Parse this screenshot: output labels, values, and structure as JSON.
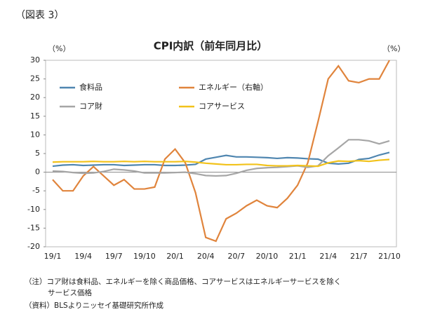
{
  "figure_label": "（図表 3）",
  "chart_data": {
    "type": "line",
    "title": "CPI内訳（前年同月比）",
    "y_unit_left": "（%）",
    "y_unit_right": "（%）",
    "categories": [
      "19/1",
      null,
      null,
      "19/4",
      null,
      null,
      "19/7",
      null,
      null,
      "19/10",
      null,
      null,
      "20/1",
      null,
      null,
      "20/4",
      null,
      null,
      "20/7",
      null,
      null,
      "20/10",
      null,
      null,
      "21/1",
      null,
      null,
      "21/4",
      null,
      null,
      "21/7",
      null,
      null,
      "21/10"
    ],
    "series": [
      {
        "name": "食料品",
        "color": "#4f86b0",
        "values": [
          1.6,
          1.9,
          2.0,
          1.8,
          1.9,
          2.0,
          2.0,
          1.8,
          1.9,
          2.0,
          2.0,
          1.8,
          1.8,
          1.9,
          2.1,
          3.5,
          4.0,
          4.5,
          4.1,
          4.1,
          4.0,
          3.9,
          3.7,
          3.9,
          3.8,
          3.6,
          3.5,
          2.4,
          2.2,
          2.4,
          3.4,
          3.7,
          4.6,
          5.3
        ]
      },
      {
        "name": "エネルギー（右軸）",
        "color": "#e0843c",
        "values": [
          -2,
          -5,
          -5,
          -1,
          1.5,
          -1,
          -3.5,
          -2,
          -4.5,
          -4.5,
          -4,
          3.5,
          6.2,
          2.5,
          -5.5,
          -17.5,
          -18.5,
          -12.5,
          -11,
          -9,
          -7.5,
          -9,
          -9.5,
          -7,
          -3.5,
          2.5,
          13.5,
          25,
          28.5,
          24.5,
          24,
          25,
          25,
          30
        ]
      },
      {
        "name": "コア財",
        "color": "#a6a6a6",
        "values": [
          0.3,
          0.2,
          -0.1,
          -0.3,
          -0.2,
          0.2,
          0.8,
          0.6,
          0.3,
          -0.2,
          -0.2,
          -0.2,
          -0.1,
          0.0,
          -0.4,
          -0.9,
          -1.0,
          -0.9,
          -0.3,
          0.5,
          1.0,
          1.2,
          1.3,
          1.5,
          1.7,
          1.3,
          1.7,
          4.4,
          6.5,
          8.7,
          8.7,
          8.4,
          7.6,
          8.4
        ]
      },
      {
        "name": "コアサービス",
        "color": "#f2c21a",
        "values": [
          2.7,
          2.8,
          2.8,
          2.8,
          2.9,
          2.8,
          2.8,
          2.9,
          2.8,
          2.9,
          2.8,
          2.8,
          2.8,
          2.9,
          2.7,
          2.4,
          2.2,
          2.0,
          2.0,
          2.1,
          2.1,
          1.8,
          1.7,
          1.7,
          1.8,
          1.7,
          1.6,
          2.5,
          3.0,
          2.9,
          3.1,
          2.9,
          3.2,
          3.4
        ]
      }
    ],
    "ylim": [
      -20,
      30
    ],
    "yticks": [
      -20,
      -15,
      -10,
      -5,
      0,
      5,
      10,
      15,
      20,
      25,
      30
    ],
    "notes": [
      "（注）コア財は食料品、エネルギーを除く商品価格、コアサービスはエネルギーサービスを除く",
      "サービス価格",
      "（資料）BLSよりニッセイ基礎研究所作成"
    ]
  }
}
